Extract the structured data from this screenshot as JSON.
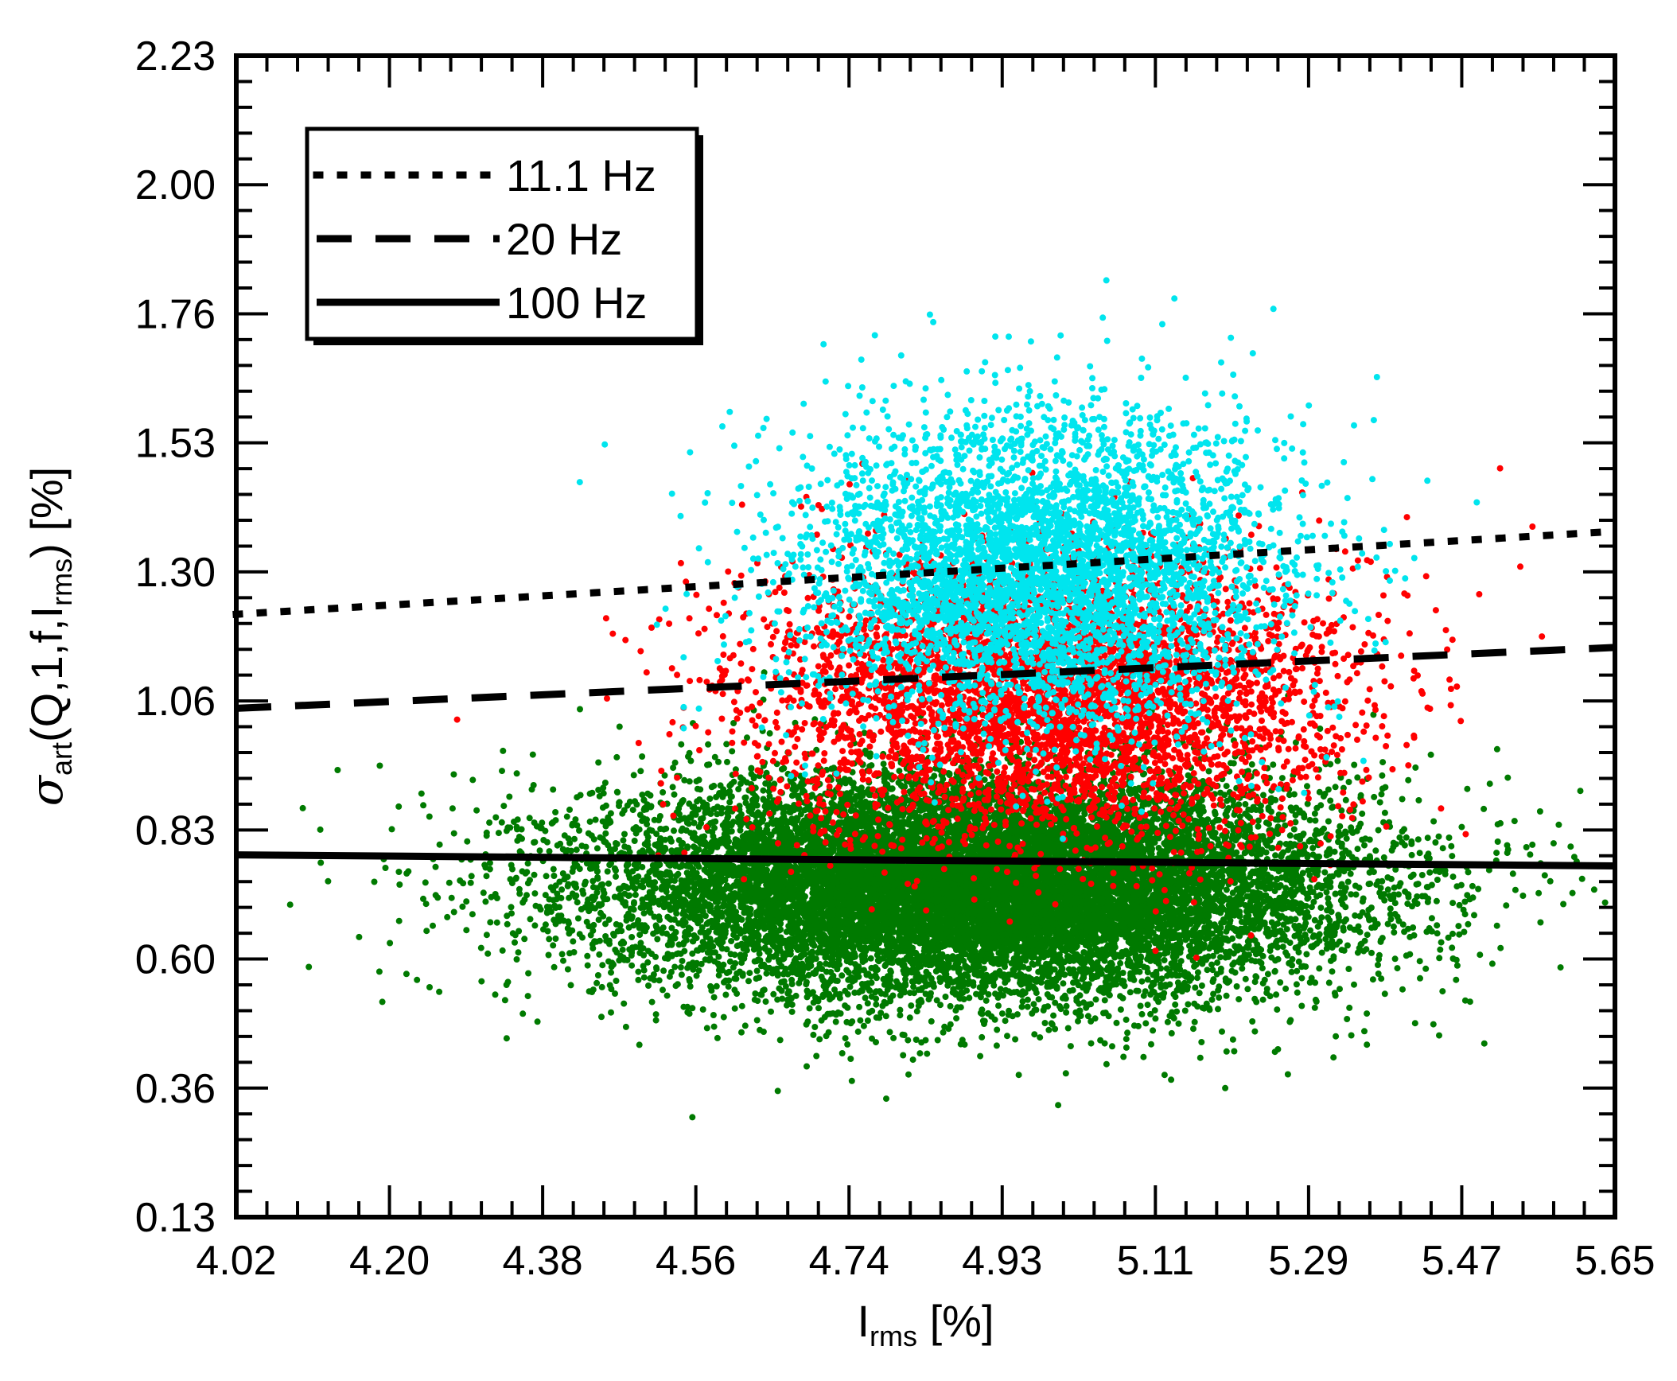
{
  "chart_data": {
    "type": "scatter",
    "title": "",
    "xlabel": {
      "main": "I",
      "sub": "rms",
      "suffix": " [%]"
    },
    "ylabel": {
      "sigma": "σ",
      "sub1": "art",
      "mid1": "(Q,1,f,I",
      "sub2": "rms",
      "end": ") [%]"
    },
    "xlim": [
      4.02,
      5.65
    ],
    "ylim": [
      0.13,
      2.23
    ],
    "x_ticks": [
      "4.02",
      "4.20",
      "4.38",
      "4.56",
      "4.74",
      "4.93",
      "5.11",
      "5.29",
      "5.47",
      "5.65"
    ],
    "y_ticks": [
      "0.13",
      "0.36",
      "0.60",
      "0.83",
      "1.06",
      "1.30",
      "1.53",
      "1.76",
      "2.00",
      "2.23"
    ],
    "grid": false,
    "legend_position": "top-left",
    "scatter_series": [
      {
        "color": "#007a00",
        "count": 14000,
        "x_center": 4.9,
        "x_spread": 0.22,
        "y_center": 0.73,
        "y_spread": 0.1
      },
      {
        "color": "#ff0000",
        "count": 4500,
        "x_center": 4.98,
        "x_spread": 0.17,
        "y_center": 1.07,
        "y_spread": 0.13
      },
      {
        "color": "#00e5ee",
        "count": 4500,
        "x_center": 4.97,
        "x_spread": 0.14,
        "y_center": 1.3,
        "y_spread": 0.14
      }
    ],
    "lines": [
      {
        "name": "11.1 Hz",
        "style": "dotted",
        "x": [
          4.02,
          5.65
        ],
        "y": [
          1.22,
          1.37
        ]
      },
      {
        "name": "20 Hz",
        "style": "dashed",
        "x": [
          4.02,
          5.65
        ],
        "y": [
          1.05,
          1.16
        ]
      },
      {
        "name": "100 Hz",
        "style": "solid",
        "x": [
          4.02,
          5.65
        ],
        "y": [
          0.785,
          0.765
        ]
      }
    ]
  }
}
